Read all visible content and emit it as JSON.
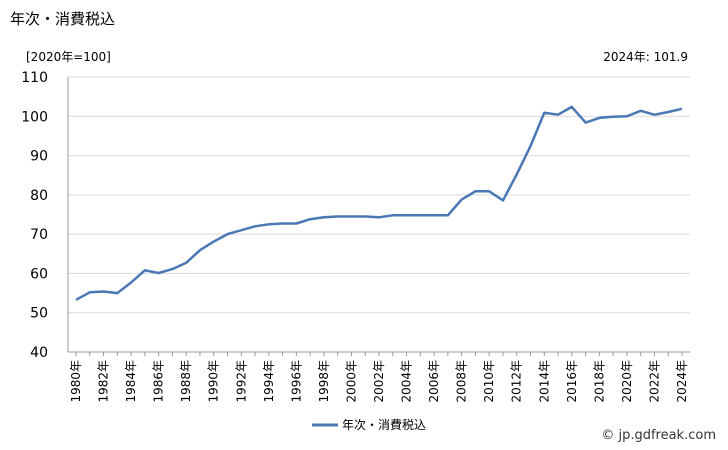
{
  "header": {
    "title": "年次・消費税込",
    "unit_label": "[2020年=100]",
    "latest_label": "2024年: 101.9"
  },
  "credit": {
    "text": "© jp.gdfreak.com"
  },
  "colors": {
    "series": "#4a78b4",
    "grid": "#d9d9d9",
    "axis": "#999999"
  },
  "chart_data": {
    "type": "line",
    "title": "",
    "xlabel": "",
    "ylabel": "",
    "ylim": [
      40,
      110
    ],
    "yticks": [
      40,
      50,
      60,
      70,
      80,
      90,
      100,
      110
    ],
    "x": [
      1980,
      1981,
      1982,
      1983,
      1984,
      1985,
      1986,
      1987,
      1988,
      1989,
      1990,
      1991,
      1992,
      1993,
      1994,
      1995,
      1996,
      1997,
      1998,
      1999,
      2000,
      2001,
      2002,
      2003,
      2004,
      2005,
      2006,
      2007,
      2008,
      2009,
      2010,
      2011,
      2012,
      2013,
      2014,
      2015,
      2016,
      2017,
      2018,
      2019,
      2020,
      2021,
      2022,
      2023,
      2024
    ],
    "xtick_labels": [
      "1980年",
      "1982年",
      "1984年",
      "1986年",
      "1988年",
      "1990年",
      "1992年",
      "1994年",
      "1996年",
      "1998年",
      "2000年",
      "2002年",
      "2004年",
      "2006年",
      "2008年",
      "2010年",
      "2012年",
      "2014年",
      "2016年",
      "2018年",
      "2020年",
      "2022年",
      "2024年"
    ],
    "series": [
      {
        "name": "年次・消費税込",
        "values": [
          53.3,
          55.2,
          55.4,
          55.0,
          57.7,
          60.8,
          60.1,
          61.1,
          62.7,
          65.9,
          68.1,
          70.0,
          71.0,
          72.0,
          72.5,
          72.7,
          72.7,
          73.8,
          74.3,
          74.5,
          74.5,
          74.5,
          74.3,
          74.8,
          74.8,
          74.8,
          74.8,
          74.8,
          78.8,
          80.9,
          80.9,
          78.6,
          85.2,
          92.4,
          100.9,
          100.4,
          102.4,
          98.4,
          99.6,
          99.9,
          100.0,
          101.4,
          100.4,
          101.1,
          101.9
        ]
      }
    ],
    "legend": "bottom",
    "grid": true
  }
}
